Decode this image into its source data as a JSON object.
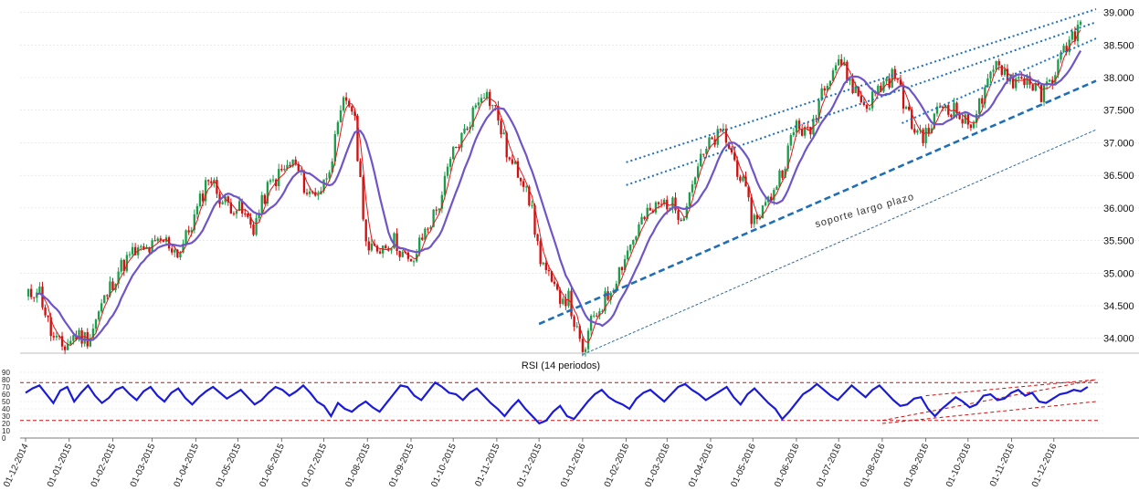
{
  "chart_data": [
    {
      "type": "candlestick",
      "title": "",
      "y_axis_position": "right",
      "ylim": [
        33.8,
        39.05
      ],
      "y_ticks": [
        "34.000",
        "34.500",
        "35.000",
        "35.500",
        "36.000",
        "36.500",
        "37.000",
        "37.500",
        "38.000",
        "38.500",
        "39.000"
      ],
      "y_tick_values": [
        34.0,
        34.5,
        35.0,
        35.5,
        36.0,
        36.5,
        37.0,
        37.5,
        38.0,
        38.5,
        39.0
      ],
      "x_range": [
        "01-12-2014",
        "31-12-2016"
      ],
      "x_ticks": [
        "01-12-2014",
        "01-01-2015",
        "01-02-2015",
        "01-03-2015",
        "01-04-2015",
        "01-05-2015",
        "01-06-2015",
        "01-07-2015",
        "01-08-2015",
        "01-09-2015",
        "01-10-2015",
        "01-11-2015",
        "01-12-2015",
        "01-01-2016",
        "01-02-2016",
        "01-03-2016",
        "01-04-2016",
        "01-05-2016",
        "01-06-2016",
        "01-07-2016",
        "01-08-2016",
        "01-09-2016",
        "01-10-2016",
        "01-11-2016",
        "01-12-2016"
      ],
      "colors": {
        "up": "#1a9e4a",
        "down": "#d01010",
        "ma_fast": "#e01818",
        "ma_slow": "#6f55c8",
        "trend": "#1f6fb5"
      },
      "grid": "horizontal dashed",
      "price_path": [
        [
          "01-12-2014",
          34.6
        ],
        [
          "10-12-2014",
          34.8
        ],
        [
          "20-12-2014",
          34.0
        ],
        [
          "28-12-2014",
          33.85
        ],
        [
          "05-01-2015",
          34.05
        ],
        [
          "15-01-2015",
          34.0
        ],
        [
          "25-01-2015",
          34.55
        ],
        [
          "05-02-2015",
          35.05
        ],
        [
          "15-02-2015",
          35.3
        ],
        [
          "25-02-2015",
          35.35
        ],
        [
          "10-03-2015",
          35.5
        ],
        [
          "20-03-2015",
          35.3
        ],
        [
          "01-04-2015",
          35.9
        ],
        [
          "10-04-2015",
          36.5
        ],
        [
          "20-04-2015",
          36.1
        ],
        [
          "01-05-2015",
          36.0
        ],
        [
          "12-05-2015",
          35.7
        ],
        [
          "22-05-2015",
          36.3
        ],
        [
          "01-06-2015",
          36.55
        ],
        [
          "10-06-2015",
          36.7
        ],
        [
          "20-06-2015",
          36.2
        ],
        [
          "30-06-2015",
          36.3
        ],
        [
          "08-07-2015",
          36.9
        ],
        [
          "16-07-2015",
          37.7
        ],
        [
          "22-07-2015",
          37.5
        ],
        [
          "01-08-2015",
          35.3
        ],
        [
          "10-08-2015",
          35.4
        ],
        [
          "20-08-2015",
          35.5
        ],
        [
          "01-09-2015",
          35.1
        ],
        [
          "10-09-2015",
          35.6
        ],
        [
          "20-09-2015",
          36.0
        ],
        [
          "01-10-2015",
          36.85
        ],
        [
          "10-10-2015",
          37.2
        ],
        [
          "22-10-2015",
          37.85
        ],
        [
          "01-11-2015",
          37.45
        ],
        [
          "10-11-2015",
          36.7
        ],
        [
          "22-11-2015",
          36.4
        ],
        [
          "01-12-2015",
          35.3
        ],
        [
          "12-12-2015",
          34.7
        ],
        [
          "22-12-2015",
          34.6
        ],
        [
          "01-01-2016",
          33.72
        ],
        [
          "08-01-2016",
          34.3
        ],
        [
          "20-01-2016",
          34.7
        ],
        [
          "01-02-2016",
          35.3
        ],
        [
          "12-02-2016",
          35.8
        ],
        [
          "22-02-2016",
          36.0
        ],
        [
          "01-03-2016",
          36.1
        ],
        [
          "12-03-2016",
          35.9
        ],
        [
          "22-03-2016",
          36.6
        ],
        [
          "01-04-2016",
          37.0
        ],
        [
          "10-04-2016",
          37.15
        ],
        [
          "22-04-2016",
          36.5
        ],
        [
          "01-05-2016",
          35.8
        ],
        [
          "12-05-2016",
          36.1
        ],
        [
          "22-05-2016",
          36.6
        ],
        [
          "01-06-2016",
          37.3
        ],
        [
          "10-06-2016",
          37.1
        ],
        [
          "20-06-2016",
          37.9
        ],
        [
          "01-07-2016",
          38.3
        ],
        [
          "10-07-2016",
          37.9
        ],
        [
          "20-07-2016",
          37.55
        ],
        [
          "01-08-2016",
          37.9
        ],
        [
          "10-08-2016",
          38.05
        ],
        [
          "22-08-2016",
          37.25
        ],
        [
          "01-09-2016",
          37.1
        ],
        [
          "12-09-2016",
          37.6
        ],
        [
          "22-09-2016",
          37.5
        ],
        [
          "01-10-2016",
          37.25
        ],
        [
          "12-10-2016",
          37.7
        ],
        [
          "22-10-2016",
          38.25
        ],
        [
          "01-11-2016",
          37.95
        ],
        [
          "12-11-2016",
          38.0
        ],
        [
          "22-11-2016",
          37.7
        ],
        [
          "01-12-2016",
          38.05
        ],
        [
          "10-12-2016",
          38.5
        ],
        [
          "20-12-2016",
          38.8
        ]
      ],
      "trendlines": [
        {
          "style": "dotted",
          "from": [
            "01-02-2016",
            36.7
          ],
          "to": [
            "31-12-2016",
            39.05
          ]
        },
        {
          "style": "dotted",
          "from": [
            "01-02-2016",
            36.35
          ],
          "to": [
            "31-12-2016",
            38.85
          ]
        },
        {
          "style": "dotted",
          "from": [
            "15-08-2016",
            37.3
          ],
          "to": [
            "31-12-2016",
            38.6
          ]
        },
        {
          "style": "dashed-thick",
          "from": [
            "01-12-2015",
            34.22
          ],
          "to": [
            "31-12-2016",
            37.95
          ]
        },
        {
          "style": "dashed-thin",
          "from": [
            "01-01-2016",
            33.75
          ],
          "to": [
            "31-12-2016",
            37.2
          ]
        }
      ],
      "annotations": [
        {
          "text": "soporte largo plazo",
          "at": [
            "15-06-2016",
            35.7
          ],
          "angle": -16
        }
      ]
    },
    {
      "type": "line",
      "title": "RSI (14 periodos)",
      "ylim": [
        0,
        90
      ],
      "y_ticks": [
        "0",
        "10",
        "20",
        "30",
        "40",
        "50",
        "60",
        "70",
        "80",
        "90"
      ],
      "y_tick_values": [
        0,
        10,
        20,
        30,
        40,
        50,
        60,
        70,
        80,
        90
      ],
      "hlines": [
        76,
        24
      ],
      "x_range": [
        "01-12-2014",
        "31-12-2016"
      ],
      "colors": {
        "line": "#1a1adb",
        "hline": "#d01010"
      },
      "series": [
        {
          "values": [
            62,
            68,
            72,
            60,
            48,
            65,
            70,
            50,
            62,
            72,
            58,
            48,
            55,
            66,
            70,
            60,
            52,
            64,
            70,
            58,
            50,
            62,
            68,
            55,
            46,
            56,
            64,
            70,
            62,
            54,
            60,
            66,
            56,
            46,
            52,
            62,
            70,
            66,
            58,
            64,
            72,
            62,
            50,
            44,
            30,
            48,
            40,
            36,
            44,
            50,
            42,
            36,
            48,
            60,
            72,
            70,
            58,
            52,
            64,
            76,
            70,
            62,
            60,
            52,
            62,
            68,
            58,
            48,
            40,
            30,
            42,
            52,
            40,
            30,
            20,
            24,
            36,
            44,
            30,
            26,
            38,
            50,
            60,
            66,
            56,
            50,
            46,
            40,
            54,
            62,
            66,
            58,
            50,
            60,
            70,
            74,
            66,
            60,
            52,
            58,
            64,
            70,
            56,
            46,
            60,
            68,
            58,
            48,
            40,
            26,
            36,
            48,
            60,
            66,
            74,
            66,
            58,
            52,
            62,
            72,
            64,
            56,
            66,
            72,
            62,
            52,
            44,
            46,
            54,
            56,
            40,
            30,
            40,
            48,
            56,
            50,
            42,
            46,
            58,
            60,
            52,
            54,
            62,
            66,
            58,
            62,
            50,
            48,
            54,
            60,
            62,
            66,
            64,
            70
          ]
        }
      ],
      "trendlines": [
        {
          "style": "dashed",
          "from": [
            "01-08-2016",
            20
          ],
          "to": [
            "31-12-2016",
            50
          ]
        },
        {
          "style": "dashed",
          "from": [
            "01-09-2016",
            58
          ],
          "to": [
            "31-12-2016",
            80
          ]
        },
        {
          "style": "dashed",
          "from": [
            "01-08-2016",
            24
          ],
          "to": [
            "31-12-2016",
            80
          ]
        }
      ]
    }
  ]
}
